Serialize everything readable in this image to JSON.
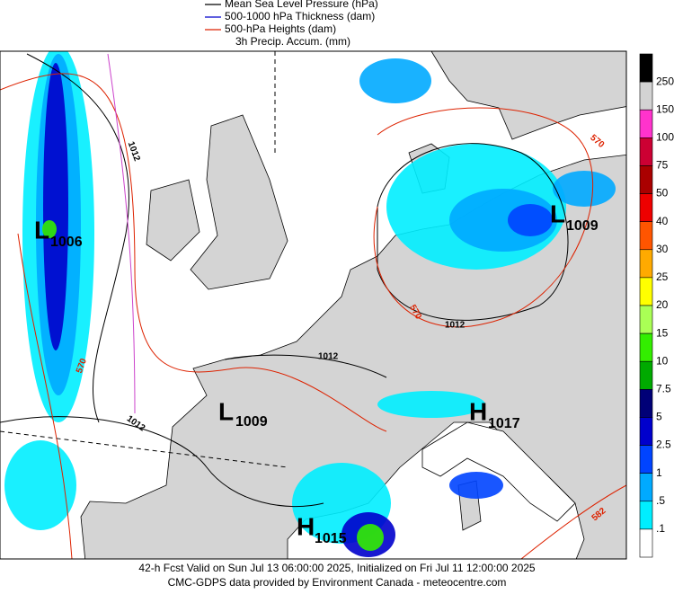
{
  "legend": [
    {
      "label": "Mean Sea Level Pressure (hPa)",
      "color": "#000000"
    },
    {
      "label": "500-1000 hPa Thickness (dam)",
      "color": "#0000cc"
    },
    {
      "label": "500-hPa Heights (dam)",
      "color": "#dd2200"
    },
    {
      "label": "3h Precip. Accum. (mm)",
      "color": null
    }
  ],
  "colorbar": {
    "colors": [
      "#000000",
      "#d3d3d3",
      "#ff33cc",
      "#cc0033",
      "#aa0000",
      "#ee0000",
      "#ff5500",
      "#ffaa00",
      "#ffff00",
      "#aaff55",
      "#33ee00",
      "#00aa00",
      "#000077",
      "#0000cc",
      "#0044ff",
      "#00aaff",
      "#00eeff",
      "#ffffff"
    ],
    "labels": [
      "250",
      "150",
      "100",
      "75",
      "50",
      "40",
      "30",
      "25",
      "20",
      "15",
      "10",
      "7.5",
      "5",
      "2.5",
      "1",
      ".5",
      ".1"
    ]
  },
  "pressure_centers": [
    {
      "letter": "L",
      "value": "1006"
    },
    {
      "letter": "L",
      "value": "1009"
    },
    {
      "letter": "L",
      "value": "1009"
    },
    {
      "letter": "H",
      "value": "1017"
    },
    {
      "letter": "H",
      "value": "1015"
    }
  ],
  "contour_labels": [
    "1012",
    "1012",
    "1012",
    "1012",
    "570",
    "570",
    "570",
    "582"
  ],
  "footer": [
    "42-h Fcst Valid on Sun Jul 13 06:00:00 2025, Initialized on Fri Jul 11 12:00:00 2025",
    "CMC-GDPS data provided by Environment Canada - meteocentre.com"
  ]
}
